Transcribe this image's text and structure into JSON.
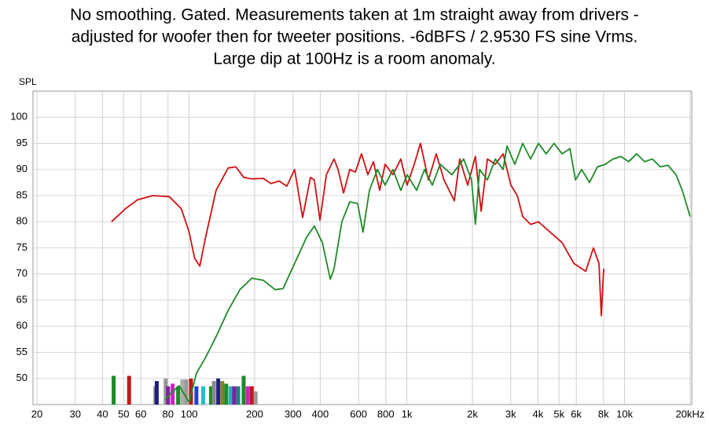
{
  "chart_data": {
    "type": "line",
    "title": [
      "No smoothing. Gated. Measurements taken at 1m straight away from drivers -",
      "adjusted for woofer then for tweeter positions. -6dBFS / 2.9530 FS sine Vrms.",
      "Large dip at 100Hz is a room anomaly."
    ],
    "y_label": "SPL",
    "log_x": true,
    "grid": true,
    "xlim": [
      20,
      20000
    ],
    "ylim": [
      45,
      105
    ],
    "xticks": [
      20,
      30,
      40,
      50,
      60,
      80,
      100,
      200,
      300,
      400,
      600,
      800,
      {
        "value": 1000,
        "label": "1k"
      },
      {
        "value": 2000,
        "label": "2k"
      },
      {
        "value": 3000,
        "label": "3k"
      },
      {
        "value": 4000,
        "label": "4k"
      },
      {
        "value": 5000,
        "label": "5k"
      },
      {
        "value": 6000,
        "label": "6k"
      },
      {
        "value": 8000,
        "label": "8k"
      },
      {
        "value": 10000,
        "label": "10k"
      },
      {
        "value": 20000,
        "label": "20kHz"
      }
    ],
    "yticks": [
      50,
      55,
      60,
      65,
      70,
      75,
      80,
      85,
      90,
      95,
      100
    ],
    "series": [
      {
        "color": "#d01010",
        "x": [
          44,
          51,
          58,
          68,
          81,
          92,
          100,
          106,
          112,
          119,
          133,
          151,
          164,
          178,
          194,
          219,
          238,
          259,
          281,
          305,
          332,
          361,
          376,
          399,
          427,
          463,
          483,
          512,
          547,
          580,
          619,
          662,
          702,
          750,
          795,
          863,
          938,
          1002,
          1081,
          1155,
          1256,
          1364,
          1482,
          1652,
          1750,
          1902,
          2065,
          2193,
          2344,
          2547,
          2767,
          3006,
          3214,
          3405,
          3700,
          4019,
          4551,
          5165,
          5850,
          6625,
          7197,
          7625,
          7817,
          8013
        ],
        "values": [
          80,
          82.5,
          84.2,
          85,
          84.8,
          82.5,
          78,
          73,
          71.5,
          77,
          86,
          90.3,
          90.5,
          88.5,
          88.2,
          88.3,
          87.3,
          87.8,
          86.8,
          90,
          80.8,
          88.5,
          88,
          80.3,
          89,
          92,
          90,
          85.5,
          90,
          89.5,
          93,
          89,
          91.5,
          86,
          91,
          89,
          92,
          87,
          91,
          95,
          88,
          93,
          88,
          84,
          92,
          87,
          92.5,
          82,
          92,
          91,
          93,
          87,
          85,
          81,
          79.5,
          80,
          78,
          76,
          72,
          70.5,
          75,
          72,
          62,
          71
        ]
      },
      {
        "color": "#1e8a28",
        "x": [
          78,
          84,
          90,
          100,
          108,
          119,
          133,
          151,
          171,
          194,
          219,
          248,
          270,
          305,
          346,
          376,
          409,
          445,
          463,
          503,
          547,
          594,
          629,
          673,
          732,
          795,
          863,
          938,
          1002,
          1109,
          1205,
          1309,
          1422,
          1610,
          1824,
          1982,
          2065,
          2157,
          2344,
          2547,
          2767,
          2884,
          3134,
          3405,
          3700,
          4019,
          4365,
          4742,
          5165,
          5610,
          5948,
          6352,
          6901,
          7497,
          8147,
          8850,
          9614,
          10440,
          11360,
          12350,
          13420,
          14580,
          15840,
          17220,
          18400,
          20000
        ],
        "values": [
          46,
          47.5,
          48.6,
          45.5,
          51,
          54,
          58,
          63,
          67,
          69.2,
          68.8,
          67,
          67.2,
          72,
          77,
          79.2,
          76,
          69,
          71,
          80,
          83.8,
          83.5,
          78,
          86,
          90,
          87,
          90,
          86,
          89,
          86,
          90,
          87,
          91,
          89,
          92,
          88,
          79.5,
          90,
          88,
          92,
          90,
          94.5,
          91,
          95,
          92,
          95,
          93,
          95,
          93,
          94,
          88,
          90,
          87.5,
          90.5,
          91,
          92,
          92.5,
          91.5,
          93,
          91.5,
          92,
          90.5,
          90.8,
          89,
          86,
          81
        ]
      }
    ],
    "markers": {
      "x": [
        45,
        53,
        70,
        71,
        78,
        80,
        84,
        89,
        93,
        97,
        102,
        108,
        116,
        126,
        130,
        136,
        142,
        148,
        155,
        161,
        168,
        178,
        186,
        194,
        202
      ],
      "values": [
        50.5,
        50.5,
        48.5,
        49.5,
        50,
        48.5,
        49,
        48.5,
        49.8,
        49.8,
        50,
        48.5,
        48.5,
        48.5,
        49.5,
        50,
        49.5,
        49,
        48.5,
        48.5,
        48.5,
        50.5,
        48.5,
        48.5,
        47.5
      ],
      "colors": [
        "#1e8a28",
        "#c01818",
        "#888888",
        "#202080",
        "#999999",
        "#8020a0",
        "#d020c0",
        "#1e8a28",
        "#aaaaaa",
        "#999999",
        "#c01818",
        "#2040d0",
        "#20c0d0",
        "#1e8a28",
        "#888888",
        "#202080",
        "#808020",
        "#1e8a28",
        "#20b0c0",
        "#8020a0",
        "#208080",
        "#1e8a28",
        "#d020c0",
        "#c01818",
        "#999999"
      ]
    }
  }
}
